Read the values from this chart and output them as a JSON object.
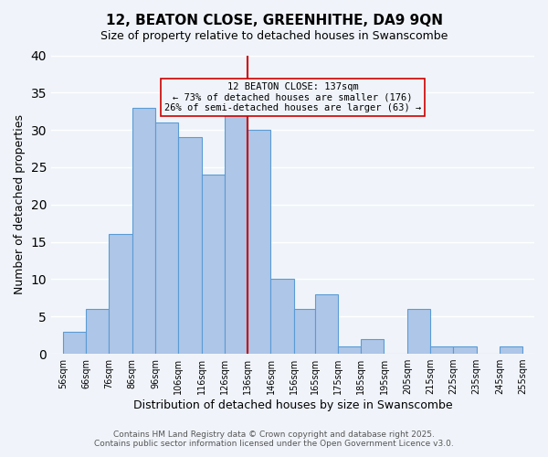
{
  "title": "12, BEATON CLOSE, GREENHITHE, DA9 9QN",
  "subtitle": "Size of property relative to detached houses in Swanscombe",
  "xlabel": "Distribution of detached houses by size in Swanscombe",
  "ylabel": "Number of detached properties",
  "bar_edges": [
    56,
    66,
    76,
    86,
    96,
    106,
    116,
    126,
    136,
    146,
    156,
    165,
    175,
    185,
    195,
    205,
    215,
    225,
    235,
    245,
    255
  ],
  "bar_heights": [
    3,
    6,
    16,
    33,
    31,
    29,
    24,
    33,
    30,
    10,
    6,
    8,
    1,
    2,
    0,
    6,
    1,
    1,
    0,
    1
  ],
  "bar_color": "#aec6e8",
  "bar_edgecolor": "#5b9bd5",
  "property_line_x": 136,
  "property_line_color": "#cc0000",
  "annotation_title": "12 BEATON CLOSE: 137sqm",
  "annotation_line1": "← 73% of detached houses are smaller (176)",
  "annotation_line2": "26% of semi-detached houses are larger (63) →",
  "annotation_box_edgecolor": "#cc0000",
  "ylim": [
    0,
    40
  ],
  "yticks": [
    0,
    5,
    10,
    15,
    20,
    25,
    30,
    35,
    40
  ],
  "tick_labels": [
    "56sqm",
    "66sqm",
    "76sqm",
    "86sqm",
    "96sqm",
    "106sqm",
    "116sqm",
    "126sqm",
    "136sqm",
    "146sqm",
    "156sqm",
    "165sqm",
    "175sqm",
    "185sqm",
    "195sqm",
    "205sqm",
    "215sqm",
    "225sqm",
    "235sqm",
    "245sqm",
    "255sqm"
  ],
  "background_color": "#f0f4fa",
  "grid_color": "#ffffff",
  "footer_line1": "Contains HM Land Registry data © Crown copyright and database right 2025.",
  "footer_line2": "Contains public sector information licensed under the Open Government Licence v3.0."
}
